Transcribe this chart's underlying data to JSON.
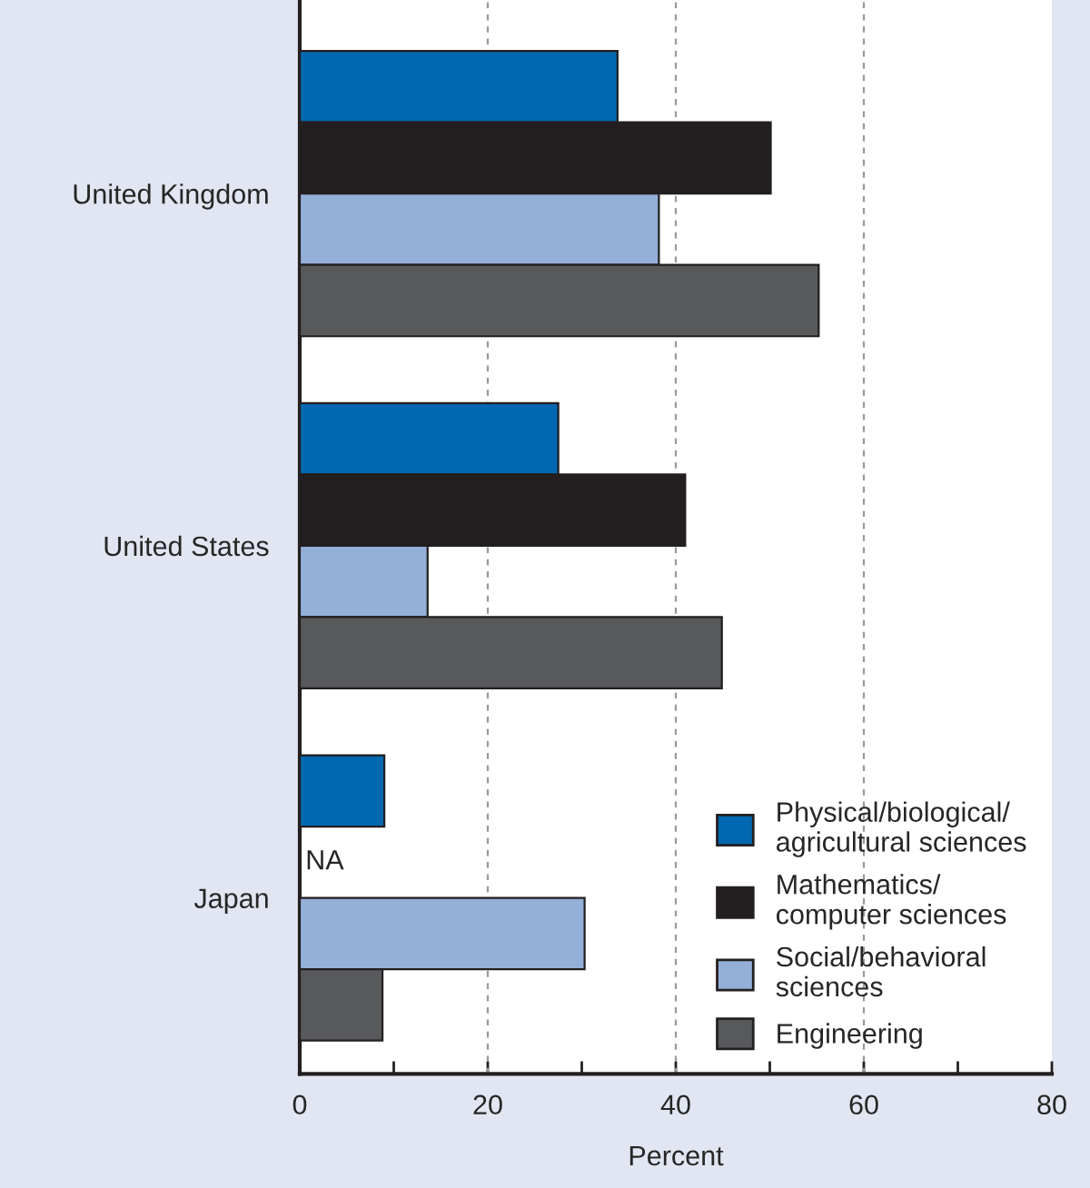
{
  "chart_data": {
    "type": "bar",
    "orientation": "horizontal",
    "xlabel": "Percent",
    "categories": [
      "United Kingdom",
      "United States",
      "Japan"
    ],
    "series": [
      {
        "name": "Physical/biological/\nagricultural sciences",
        "color": "#0068b0",
        "values": [
          33.8,
          27.5,
          9.0
        ]
      },
      {
        "name": "Mathematics/\ncomputer sciences",
        "color": "#231f20",
        "values": [
          50.1,
          41.0,
          null
        ]
      },
      {
        "name": "Social/behavioral\nsciences",
        "color": "#94afd8",
        "values": [
          38.2,
          13.6,
          30.3
        ]
      },
      {
        "name": "Engineering",
        "color": "#58595b",
        "values": [
          55.2,
          44.9,
          8.8
        ]
      }
    ],
    "xlim": [
      0,
      80
    ],
    "xticks": [
      0,
      {
        "value": 10,
        "label": null
      },
      20,
      {
        "value": 30,
        "label": null
      },
      40,
      {
        "value": 50,
        "label": null
      },
      60,
      {
        "value": 70,
        "label": null
      },
      80
    ],
    "annotations": [
      "NA"
    ],
    "grid": "x",
    "legend": "bottom right"
  }
}
